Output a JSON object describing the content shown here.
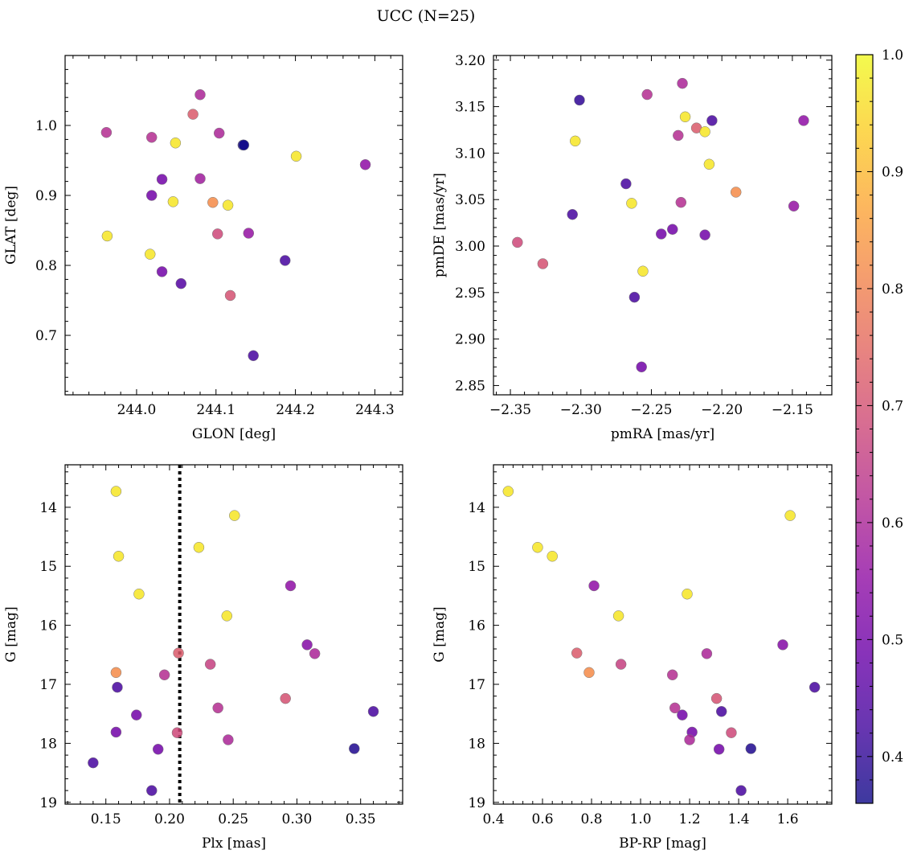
{
  "figure": {
    "title": "UCC (N=25)"
  },
  "colorbar": {
    "range": [
      0.36,
      1.0
    ],
    "ticks": [
      "0.4",
      "0.5",
      "0.6",
      "0.7",
      "0.8",
      "0.9",
      "1.0"
    ],
    "tick_values": [
      0.4,
      0.5,
      0.6,
      0.7,
      0.8,
      0.9,
      1.0
    ],
    "colormap": "plasma"
  },
  "chart_data": [
    {
      "type": "scatter",
      "xlabel": "GLON [deg]",
      "ylabel": "GLAT [deg]",
      "xlim": [
        243.91,
        244.335
      ],
      "ylim": [
        0.615,
        1.1
      ],
      "yinvert": false,
      "xticks": [
        244.0,
        244.1,
        244.2,
        244.3
      ],
      "xticklabels": [
        "244.0",
        "244.1",
        "244.2",
        "244.3"
      ],
      "yticks": [
        0.7,
        0.8,
        0.9,
        1.0
      ],
      "yticklabels": [
        "0.7",
        "0.8",
        "0.9",
        "1.0"
      ],
      "x": [
        243.962,
        244.019,
        244.049,
        244.08,
        244.071,
        244.104,
        244.134,
        244.201,
        244.288,
        244.032,
        244.019,
        244.08,
        244.046,
        244.096,
        244.115,
        243.963,
        244.017,
        244.102,
        244.141,
        244.187,
        244.032,
        244.056,
        244.118,
        244.147,
        244.135
      ],
      "y": [
        0.99,
        0.983,
        0.975,
        1.044,
        1.016,
        0.989,
        0.972,
        0.956,
        0.944,
        0.923,
        0.9,
        0.924,
        0.891,
        0.89,
        0.886,
        0.842,
        0.816,
        0.845,
        0.846,
        0.807,
        0.791,
        0.774,
        0.757,
        0.671,
        0.972
      ],
      "c": [
        0.62,
        0.62,
        0.97,
        0.6,
        0.72,
        0.6,
        0.38,
        0.97,
        0.55,
        0.5,
        0.5,
        0.58,
        0.97,
        0.82,
        0.97,
        0.97,
        0.97,
        0.68,
        0.56,
        0.43,
        0.5,
        0.45,
        0.7,
        0.43,
        0.32
      ]
    },
    {
      "type": "scatter",
      "xlabel": "pmRA [mas/yr]",
      "ylabel": "pmDE [mas/yr]",
      "xlim": [
        -2.362,
        -2.122
      ],
      "ylim": [
        2.84,
        3.205
      ],
      "yinvert": false,
      "xticks": [
        -2.35,
        -2.3,
        -2.25,
        -2.2,
        -2.15
      ],
      "xticklabels": [
        "−2.35",
        "−2.30",
        "−2.25",
        "−2.20",
        "−2.15"
      ],
      "yticks": [
        2.85,
        2.9,
        2.95,
        3.0,
        3.05,
        3.1,
        3.15,
        3.2
      ],
      "yticklabels": [
        "2.85",
        "2.90",
        "2.95",
        "3.00",
        "3.05",
        "3.10",
        "3.15",
        "3.20"
      ],
      "x": [
        -2.228,
        -2.253,
        -2.301,
        -2.226,
        -2.207,
        -2.142,
        -2.218,
        -2.231,
        -2.212,
        -2.304,
        -2.209,
        -2.268,
        -2.264,
        -2.229,
        -2.19,
        -2.149,
        -2.306,
        -2.235,
        -2.243,
        -2.212,
        -2.345,
        -2.327,
        -2.256,
        -2.262,
        -2.257
      ],
      "y": [
        3.175,
        3.163,
        3.157,
        3.139,
        3.135,
        3.135,
        3.127,
        3.119,
        3.123,
        3.113,
        3.088,
        3.067,
        3.046,
        3.047,
        3.058,
        3.043,
        3.034,
        3.018,
        3.013,
        3.012,
        3.004,
        2.981,
        2.973,
        2.945,
        2.87
      ],
      "c": [
        0.6,
        0.62,
        0.4,
        0.97,
        0.43,
        0.55,
        0.72,
        0.62,
        0.97,
        0.97,
        0.97,
        0.43,
        0.97,
        0.62,
        0.82,
        0.56,
        0.43,
        0.5,
        0.5,
        0.5,
        0.68,
        0.7,
        0.97,
        0.43,
        0.5
      ]
    },
    {
      "type": "scatter",
      "xlabel": "Plx [mas]",
      "ylabel": "G [mag]",
      "xlim": [
        0.118,
        0.383
      ],
      "ylim": [
        13.28,
        19.03
      ],
      "yinvert": true,
      "xticks": [
        0.15,
        0.2,
        0.25,
        0.3,
        0.35
      ],
      "xticklabels": [
        "0.15",
        "0.20",
        "0.25",
        "0.30",
        "0.35"
      ],
      "yticks": [
        14,
        15,
        16,
        17,
        18,
        19
      ],
      "yticklabels": [
        "14",
        "15",
        "16",
        "17",
        "18",
        "19"
      ],
      "vline": 0.208,
      "x": [
        0.158,
        0.251,
        0.16,
        0.223,
        0.176,
        0.295,
        0.245,
        0.308,
        0.314,
        0.207,
        0.232,
        0.158,
        0.196,
        0.159,
        0.291,
        0.238,
        0.174,
        0.36,
        0.158,
        0.206,
        0.246,
        0.345,
        0.191,
        0.14,
        0.186
      ],
      "y": [
        13.73,
        14.14,
        14.83,
        14.68,
        15.47,
        15.33,
        15.84,
        16.33,
        16.48,
        16.47,
        16.66,
        16.8,
        16.84,
        17.05,
        17.24,
        17.4,
        17.52,
        17.46,
        17.81,
        17.82,
        17.94,
        18.09,
        18.1,
        18.33,
        18.8
      ],
      "c": [
        0.97,
        0.97,
        0.97,
        0.97,
        0.97,
        0.55,
        0.97,
        0.53,
        0.6,
        0.72,
        0.66,
        0.82,
        0.62,
        0.43,
        0.7,
        0.62,
        0.5,
        0.43,
        0.5,
        0.68,
        0.6,
        0.38,
        0.5,
        0.43,
        0.43
      ]
    },
    {
      "type": "scatter",
      "xlabel": "BP-RP [mag]",
      "ylabel": "G [mag]",
      "xlim": [
        0.4,
        1.78
      ],
      "ylim": [
        13.28,
        19.03
      ],
      "yinvert": true,
      "xticks": [
        0.4,
        0.6,
        0.8,
        1.0,
        1.2,
        1.4,
        1.6
      ],
      "xticklabels": [
        "0.4",
        "0.6",
        "0.8",
        "1.0",
        "1.2",
        "1.4",
        "1.6"
      ],
      "yticks": [
        14,
        15,
        16,
        17,
        18,
        19
      ],
      "yticklabels": [
        "14",
        "15",
        "16",
        "17",
        "18",
        "19"
      ],
      "x": [
        0.46,
        1.61,
        0.58,
        0.64,
        0.81,
        1.19,
        0.91,
        1.58,
        1.27,
        0.74,
        0.92,
        0.79,
        1.13,
        1.71,
        1.31,
        1.14,
        1.17,
        1.33,
        1.37,
        1.21,
        1.2,
        1.45,
        1.32,
        1.41
      ],
      "y": [
        13.73,
        14.14,
        14.68,
        14.83,
        15.33,
        15.47,
        15.84,
        16.33,
        16.48,
        16.47,
        16.66,
        16.8,
        16.84,
        17.05,
        17.24,
        17.4,
        17.52,
        17.46,
        17.82,
        17.81,
        17.94,
        18.09,
        18.1,
        18.8
      ],
      "c": [
        0.97,
        0.97,
        0.97,
        0.97,
        0.55,
        0.97,
        0.97,
        0.53,
        0.6,
        0.72,
        0.66,
        0.82,
        0.62,
        0.43,
        0.7,
        0.62,
        0.5,
        0.43,
        0.68,
        0.5,
        0.6,
        0.38,
        0.5,
        0.43
      ]
    }
  ]
}
